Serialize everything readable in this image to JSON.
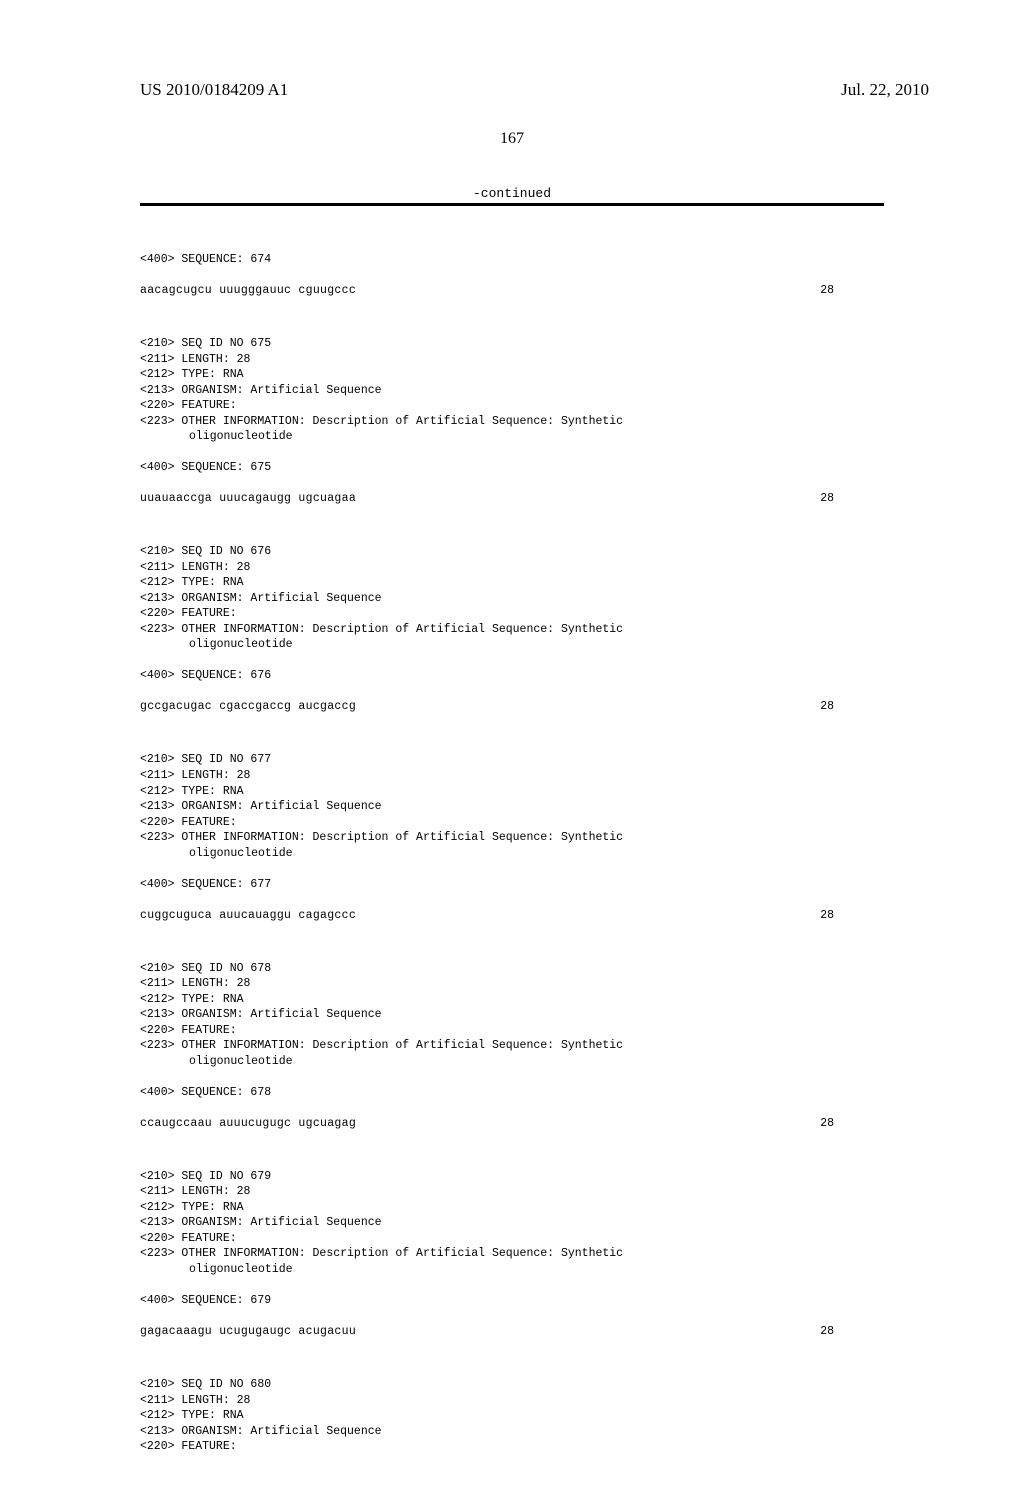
{
  "header": {
    "pub_number": "US 2010/0184209 A1",
    "pub_date": "Jul. 22, 2010",
    "page_number": "167",
    "continued": "-continued"
  },
  "sequences": [
    {
      "seq_header": "<400> SEQUENCE: 674",
      "seq_data": "aacagcugcu uuugggauuc cguugccc",
      "seq_len": "28",
      "meta": null
    },
    {
      "meta": [
        "<210> SEQ ID NO 675",
        "<211> LENGTH: 28",
        "<212> TYPE: RNA",
        "<213> ORGANISM: Artificial Sequence",
        "<220> FEATURE:",
        "<223> OTHER INFORMATION: Description of Artificial Sequence: Synthetic"
      ],
      "meta_indent": "oligonucleotide",
      "seq_header": "<400> SEQUENCE: 675",
      "seq_data": "uuauaaccga uuucagaugg ugcuagaa",
      "seq_len": "28"
    },
    {
      "meta": [
        "<210> SEQ ID NO 676",
        "<211> LENGTH: 28",
        "<212> TYPE: RNA",
        "<213> ORGANISM: Artificial Sequence",
        "<220> FEATURE:",
        "<223> OTHER INFORMATION: Description of Artificial Sequence: Synthetic"
      ],
      "meta_indent": "oligonucleotide",
      "seq_header": "<400> SEQUENCE: 676",
      "seq_data": "gccgacugac cgaccgaccg aucgaccg",
      "seq_len": "28"
    },
    {
      "meta": [
        "<210> SEQ ID NO 677",
        "<211> LENGTH: 28",
        "<212> TYPE: RNA",
        "<213> ORGANISM: Artificial Sequence",
        "<220> FEATURE:",
        "<223> OTHER INFORMATION: Description of Artificial Sequence: Synthetic"
      ],
      "meta_indent": "oligonucleotide",
      "seq_header": "<400> SEQUENCE: 677",
      "seq_data": "cuggcuguca auucauaggu cagagccc",
      "seq_len": "28"
    },
    {
      "meta": [
        "<210> SEQ ID NO 678",
        "<211> LENGTH: 28",
        "<212> TYPE: RNA",
        "<213> ORGANISM: Artificial Sequence",
        "<220> FEATURE:",
        "<223> OTHER INFORMATION: Description of Artificial Sequence: Synthetic"
      ],
      "meta_indent": "oligonucleotide",
      "seq_header": "<400> SEQUENCE: 678",
      "seq_data": "ccaugccaau auuucugugc ugcuagag",
      "seq_len": "28"
    },
    {
      "meta": [
        "<210> SEQ ID NO 679",
        "<211> LENGTH: 28",
        "<212> TYPE: RNA",
        "<213> ORGANISM: Artificial Sequence",
        "<220> FEATURE:",
        "<223> OTHER INFORMATION: Description of Artificial Sequence: Synthetic"
      ],
      "meta_indent": "oligonucleotide",
      "seq_header": "<400> SEQUENCE: 679",
      "seq_data": "gagacaaagu ucugugaugc acugacuu",
      "seq_len": "28"
    },
    {
      "meta": [
        "<210> SEQ ID NO 680",
        "<211> LENGTH: 28",
        "<212> TYPE: RNA",
        "<213> ORGANISM: Artificial Sequence",
        "<220> FEATURE:"
      ],
      "meta_indent": null,
      "seq_header": null,
      "seq_data": null,
      "seq_len": null
    }
  ]
}
